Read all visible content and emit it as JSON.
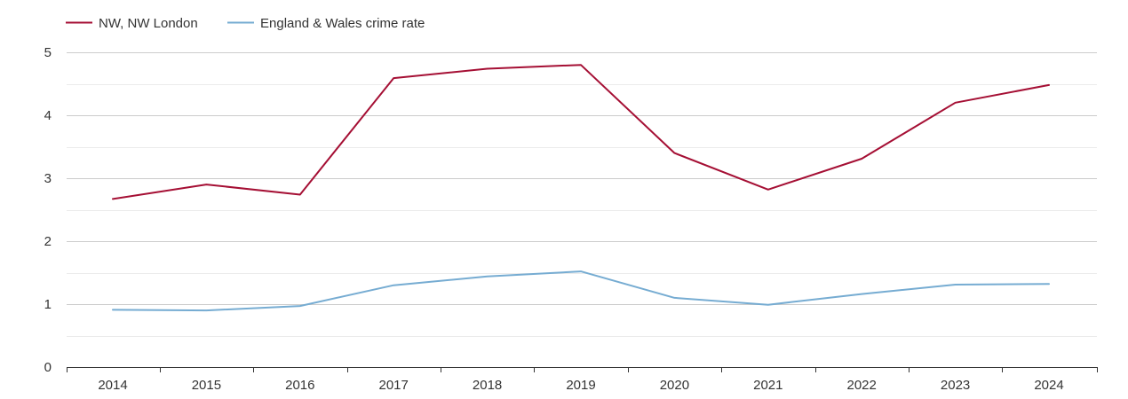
{
  "chart_data": {
    "type": "line",
    "title": "",
    "xlabel": "",
    "ylabel": "",
    "categories": [
      "2014",
      "2015",
      "2016",
      "2017",
      "2018",
      "2019",
      "2020",
      "2021",
      "2022",
      "2023",
      "2024"
    ],
    "ylim": [
      0,
      5
    ],
    "yticks": [
      "0",
      "1",
      "2",
      "3",
      "4",
      "5"
    ],
    "grid": true,
    "legend_position": "top-left",
    "series": [
      {
        "name": "NW, NW London",
        "color": "#a50f34",
        "values": [
          2.67,
          2.9,
          2.74,
          4.59,
          4.74,
          4.8,
          3.4,
          2.82,
          3.31,
          4.2,
          4.48
        ]
      },
      {
        "name": "England & Wales crime rate",
        "color": "#76acd2",
        "values": [
          0.91,
          0.9,
          0.97,
          1.3,
          1.44,
          1.52,
          1.1,
          0.99,
          1.16,
          1.31,
          1.32
        ]
      }
    ]
  }
}
